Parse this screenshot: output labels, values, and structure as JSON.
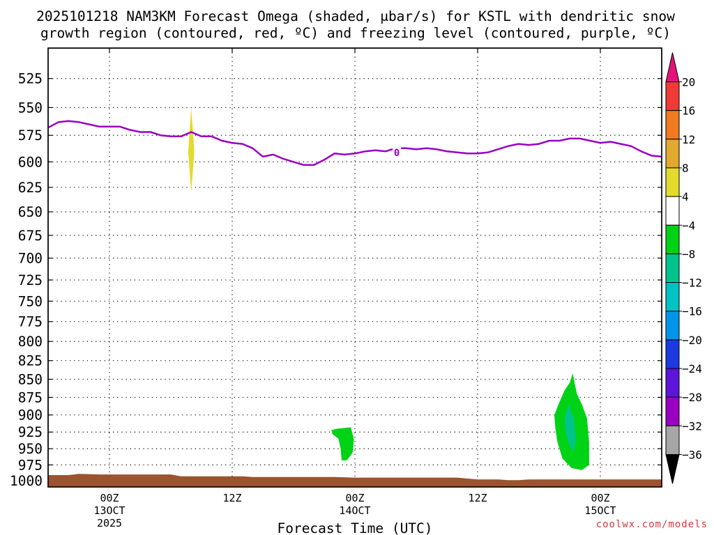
{
  "chart_data": {
    "type": "contour",
    "title_line1": "2025101218 NAM3KM Forecast Omega (shaded, μbar/s) for KSTL with dendritic snow",
    "title_line2": "growth region (contoured, red, ºC) and freezing level (contoured, purple, ºC)",
    "xlabel": "Forecast Time (UTC)",
    "credit": "coolwx.com/models",
    "x_unit": "hours since 2025-10-12 18Z",
    "xlim": [
      0,
      60
    ],
    "x_ticks": [
      {
        "x": 6,
        "line1": "00Z",
        "line2": "13OCT",
        "line3": "2025"
      },
      {
        "x": 18,
        "line1": "12Z",
        "line2": "",
        "line3": ""
      },
      {
        "x": 30,
        "line1": "00Z",
        "line2": "14OCT",
        "line3": ""
      },
      {
        "x": 42,
        "line1": "12Z",
        "line2": "",
        "line3": ""
      },
      {
        "x": 54,
        "line1": "00Z",
        "line2": "15OCT",
        "line3": ""
      }
    ],
    "y_unit": "hPa",
    "ylim": [
      1010,
      500
    ],
    "y_ticks": [
      525,
      550,
      575,
      600,
      625,
      650,
      675,
      700,
      725,
      750,
      775,
      800,
      825,
      850,
      875,
      900,
      925,
      950,
      975,
      1000
    ],
    "freezing_level": {
      "label": "0",
      "label_x": 34.1,
      "label_p": 591,
      "x": [
        0,
        1,
        2,
        3,
        4,
        5,
        6,
        7,
        8,
        9,
        10,
        11,
        12,
        13,
        14,
        15,
        16,
        17,
        18,
        19,
        20,
        21,
        22,
        23,
        24,
        25,
        26,
        27,
        28,
        29,
        30,
        31,
        32,
        33,
        34,
        35,
        36,
        37,
        38,
        39,
        40,
        41,
        42,
        43,
        44,
        45,
        46,
        47,
        48,
        49,
        50,
        51,
        52,
        53,
        54,
        55,
        56,
        57,
        58,
        59,
        60
      ],
      "p": [
        568,
        563,
        562,
        563,
        565,
        567,
        567,
        567,
        570,
        572,
        572,
        575,
        576,
        576,
        572,
        576,
        576,
        580,
        582,
        583,
        587,
        595,
        593,
        597,
        600,
        603,
        603,
        598,
        592,
        593,
        592,
        590,
        589,
        590,
        587,
        587,
        588,
        587,
        588,
        590,
        591,
        592,
        592,
        591,
        588,
        585,
        583,
        584,
        583,
        580,
        580,
        578,
        578,
        580,
        582,
        581,
        583,
        585,
        590,
        594,
        595
      ]
    },
    "omega_regions": [
      {
        "label": "4 to 8",
        "color": "#e2da2c",
        "points": [
          [
            14,
            550
          ],
          [
            14.3,
            590
          ],
          [
            14,
            630
          ],
          [
            13.7,
            590
          ]
        ]
      },
      {
        "label": "-8 to -4",
        "color": "#00d215",
        "points": [
          [
            28.3,
            920
          ],
          [
            29.6,
            918
          ],
          [
            29.9,
            935
          ],
          [
            29.8,
            955
          ],
          [
            29.6,
            960
          ],
          [
            29.2,
            968
          ],
          [
            28.7,
            968
          ],
          [
            28.6,
            950
          ],
          [
            28.4,
            935
          ],
          [
            27.8,
            928
          ],
          [
            27.7,
            922
          ]
        ]
      },
      {
        "label": "-8 to -4",
        "color": "#00d215",
        "points": [
          [
            51.3,
            842
          ],
          [
            51.7,
            870
          ],
          [
            52.2,
            885
          ],
          [
            52.7,
            905
          ],
          [
            52.9,
            940
          ],
          [
            52.9,
            975
          ],
          [
            52.2,
            983
          ],
          [
            51.2,
            980
          ],
          [
            50.3,
            965
          ],
          [
            49.8,
            940
          ],
          [
            49.6,
            920
          ],
          [
            49.5,
            900
          ],
          [
            49.9,
            885
          ],
          [
            50.5,
            865
          ],
          [
            51.0,
            855
          ]
        ]
      },
      {
        "label": "-12 to -8",
        "color": "#00c48c",
        "points": [
          [
            50.9,
            885
          ],
          [
            51.4,
            905
          ],
          [
            51.6,
            935
          ],
          [
            51.4,
            955
          ],
          [
            51.0,
            945
          ],
          [
            50.6,
            925
          ],
          [
            50.5,
            905
          ]
        ]
      }
    ],
    "terrain": {
      "color": "#9b5330",
      "x": [
        0,
        2,
        3,
        5,
        8,
        10,
        12,
        13,
        15,
        17,
        19,
        20,
        25,
        28,
        30,
        35,
        38,
        40,
        42,
        44,
        45,
        46,
        47,
        48,
        50,
        55,
        60
      ],
      "p": [
        991,
        991,
        989,
        990,
        990,
        990,
        990,
        993,
        993,
        993,
        993,
        994,
        994,
        994,
        995,
        995,
        995,
        995,
        998,
        998,
        999,
        999,
        998,
        998,
        998,
        998,
        998
      ]
    },
    "colorbar": {
      "labels": [
        "20",
        "16",
        "12",
        "8",
        "4",
        "−4",
        "−8",
        "−12",
        "−16",
        "−20",
        "−24",
        "−28",
        "−32",
        "−36"
      ],
      "colors": [
        "#ef3a36",
        "#ef7a20",
        "#e2a92e",
        "#e2da2c",
        "#ffffff",
        "#00d215",
        "#00c48c",
        "#00c2c2",
        "#0095ea",
        "#1c3adf",
        "#5d14db",
        "#9a00c2",
        "#a6a6a6"
      ],
      "top_arrow_color": "#e5127a",
      "bottom_arrow_color": "#000000"
    }
  }
}
